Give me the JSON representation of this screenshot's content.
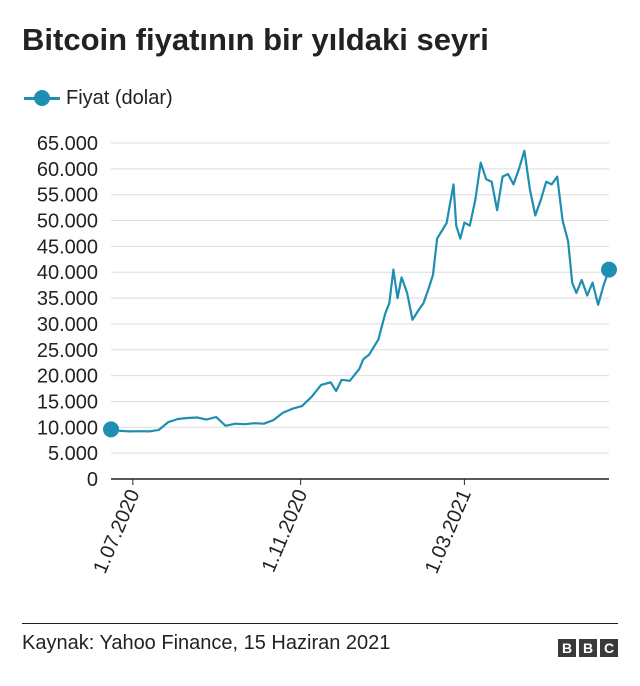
{
  "title": "Bitcoin fiyatının bir yıldaki seyri",
  "legend": {
    "label": "Fiyat (dolar)"
  },
  "source": "Kaynak: Yahoo Finance, 15 Haziran 2021",
  "brand": {
    "letters": [
      "B",
      "B",
      "C"
    ]
  },
  "colors": {
    "line": "#1e8eb1",
    "grid": "#dddddd",
    "axis": "#222222",
    "text": "#222222"
  },
  "chart_data": {
    "type": "line",
    "title": "Bitcoin fiyatının bir yıldaki seyri",
    "xlabel": "",
    "ylabel": "",
    "ylim": [
      0,
      65000
    ],
    "yticks": [
      0,
      5000,
      10000,
      15000,
      20000,
      25000,
      30000,
      35000,
      40000,
      45000,
      50000,
      55000,
      60000,
      65000
    ],
    "ytick_labels": [
      "0",
      "5.000",
      "10.000",
      "15.000",
      "20.000",
      "25.000",
      "30.000",
      "35.000",
      "40.000",
      "45.000",
      "50.000",
      "55.000",
      "60.000",
      "65.000"
    ],
    "xlim": [
      "2020-06-15",
      "2021-06-15"
    ],
    "xticks": [
      "2020-07-01",
      "2020-11-01",
      "2021-03-01"
    ],
    "xtick_labels": [
      "1.07.2020",
      "1.11.2020",
      "1.03.2021"
    ],
    "grid": true,
    "legend_position": "top-left",
    "series": [
      {
        "name": "Fiyat (dolar)",
        "markers": "endpoints",
        "x": [
          "2020-06-15",
          "2020-06-22",
          "2020-06-29",
          "2020-07-06",
          "2020-07-13",
          "2020-07-20",
          "2020-07-27",
          "2020-08-03",
          "2020-08-10",
          "2020-08-17",
          "2020-08-24",
          "2020-08-31",
          "2020-09-07",
          "2020-09-14",
          "2020-09-21",
          "2020-09-28",
          "2020-10-05",
          "2020-10-12",
          "2020-10-19",
          "2020-10-26",
          "2020-11-02",
          "2020-11-09",
          "2020-11-16",
          "2020-11-23",
          "2020-11-27",
          "2020-12-01",
          "2020-12-07",
          "2020-12-14",
          "2020-12-17",
          "2020-12-21",
          "2020-12-28",
          "2021-01-02",
          "2021-01-05",
          "2021-01-08",
          "2021-01-11",
          "2021-01-14",
          "2021-01-18",
          "2021-01-22",
          "2021-01-26",
          "2021-01-30",
          "2021-02-03",
          "2021-02-06",
          "2021-02-09",
          "2021-02-12",
          "2021-02-16",
          "2021-02-21",
          "2021-02-23",
          "2021-02-26",
          "2021-03-01",
          "2021-03-05",
          "2021-03-09",
          "2021-03-13",
          "2021-03-17",
          "2021-03-21",
          "2021-03-25",
          "2021-03-29",
          "2021-04-02",
          "2021-04-06",
          "2021-04-10",
          "2021-04-14",
          "2021-04-18",
          "2021-04-22",
          "2021-04-26",
          "2021-04-30",
          "2021-05-04",
          "2021-05-08",
          "2021-05-12",
          "2021-05-16",
          "2021-05-19",
          "2021-05-22",
          "2021-05-26",
          "2021-05-30",
          "2021-06-03",
          "2021-06-07",
          "2021-06-11",
          "2021-06-15"
        ],
        "values": [
          9600,
          9300,
          9200,
          9250,
          9200,
          9500,
          11000,
          11600,
          11800,
          11900,
          11500,
          12000,
          10300,
          10700,
          10600,
          10800,
          10700,
          11400,
          12800,
          13600,
          14100,
          15900,
          18200,
          18700,
          17000,
          19200,
          19000,
          21300,
          23200,
          24000,
          27000,
          32000,
          34000,
          40500,
          35000,
          39000,
          36000,
          30800,
          32500,
          34000,
          37000,
          39500,
          46500,
          47800,
          49500,
          57000,
          49000,
          46500,
          49600,
          49000,
          54000,
          61200,
          58000,
          57500,
          52000,
          58500,
          59000,
          57000,
          60000,
          63500,
          56000,
          51000,
          54000,
          57500,
          57000,
          58500,
          50000,
          46000,
          38000,
          36000,
          38500,
          35500,
          38000,
          33700,
          37400,
          40500
        ]
      }
    ]
  }
}
